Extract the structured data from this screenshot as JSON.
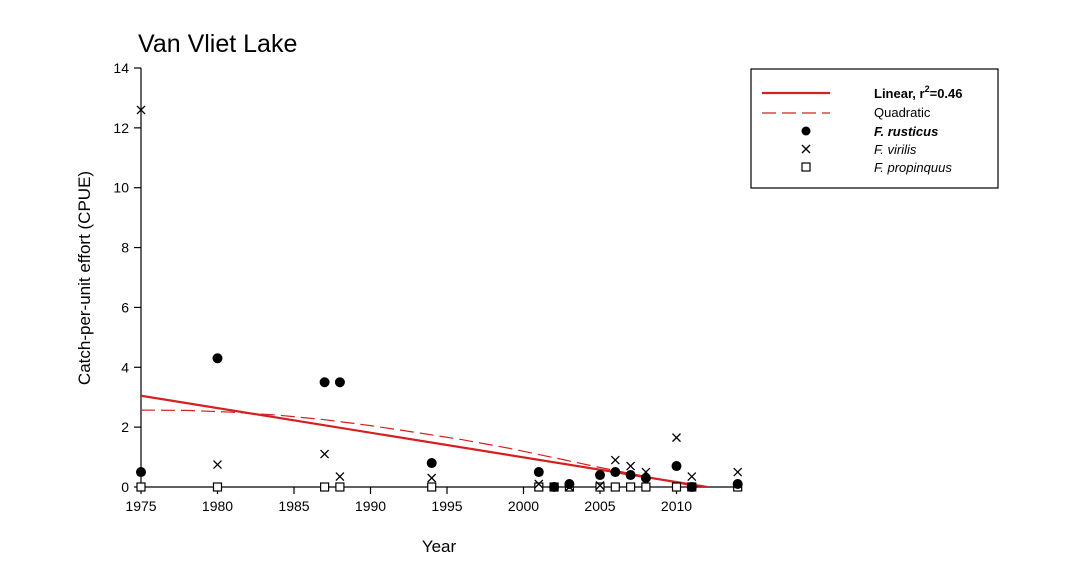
{
  "chart_data": {
    "type": "scatter",
    "title": "Van Vliet Lake",
    "xlabel": "Year",
    "ylabel": "Catch-per-unit effort (CPUE)",
    "xlim": [
      1975,
      2014
    ],
    "ylim": [
      0,
      14
    ],
    "x_ticks": [
      1975,
      1980,
      1985,
      1990,
      1995,
      2000,
      2005,
      2010
    ],
    "y_ticks": [
      0,
      2,
      4,
      6,
      8,
      10,
      12,
      14
    ],
    "grid": false,
    "legend_position": "right",
    "series": [
      {
        "name": "F. rusticus",
        "marker": "filled-circle",
        "color": "#000000",
        "points": [
          [
            1975,
            0.5
          ],
          [
            1980,
            4.3
          ],
          [
            1987,
            3.5
          ],
          [
            1988,
            3.5
          ],
          [
            1994,
            0.8
          ],
          [
            2001,
            0.5
          ],
          [
            2002,
            0.0
          ],
          [
            2003,
            0.1
          ],
          [
            2005,
            0.4
          ],
          [
            2006,
            0.5
          ],
          [
            2007,
            0.4
          ],
          [
            2008,
            0.3
          ],
          [
            2010,
            0.7
          ],
          [
            2011,
            0.0
          ],
          [
            2014,
            0.1
          ]
        ]
      },
      {
        "name": "F. virilis",
        "marker": "x",
        "color": "#000000",
        "points": [
          [
            1975,
            12.6
          ],
          [
            1980,
            0.75
          ],
          [
            1987,
            1.1
          ],
          [
            1988,
            0.35
          ],
          [
            1994,
            0.3
          ],
          [
            2001,
            0.1
          ],
          [
            2002,
            0.0
          ],
          [
            2003,
            0.0
          ],
          [
            2005,
            0.05
          ],
          [
            2006,
            0.9
          ],
          [
            2007,
            0.7
          ],
          [
            2008,
            0.5
          ],
          [
            2010,
            1.65
          ],
          [
            2011,
            0.35
          ],
          [
            2014,
            0.5
          ]
        ]
      },
      {
        "name": "F. propinquus",
        "marker": "open-square",
        "color": "#000000",
        "points": [
          [
            1975,
            0
          ],
          [
            1980,
            0
          ],
          [
            1987,
            0
          ],
          [
            1988,
            0
          ],
          [
            1994,
            0
          ],
          [
            2001,
            0
          ],
          [
            2002,
            0
          ],
          [
            2003,
            0
          ],
          [
            2005,
            0
          ],
          [
            2006,
            0
          ],
          [
            2007,
            0
          ],
          [
            2008,
            0
          ],
          [
            2010,
            0
          ],
          [
            2011,
            0
          ],
          [
            2014,
            0
          ]
        ]
      }
    ],
    "fits": [
      {
        "name": "Linear",
        "r2_label": "r",
        "r2_sup": "2",
        "r2_value": "=0.46",
        "style": "solid",
        "color": "#d42020",
        "points": [
          [
            1975,
            3.05
          ],
          [
            2012,
            0.0
          ]
        ]
      },
      {
        "name": "Quadratic",
        "style": "dashed",
        "color": "#d42020",
        "points": [
          [
            1975,
            2.57
          ],
          [
            1978,
            2.56
          ],
          [
            1981,
            2.5
          ],
          [
            1984,
            2.4
          ],
          [
            1987,
            2.25
          ],
          [
            1990,
            2.05
          ],
          [
            1993,
            1.82
          ],
          [
            1996,
            1.58
          ],
          [
            1999,
            1.3
          ],
          [
            2002,
            0.98
          ],
          [
            2005,
            0.65
          ],
          [
            2008,
            0.35
          ],
          [
            2010,
            0.15
          ],
          [
            2011,
            0.03
          ]
        ]
      }
    ]
  },
  "legend": {
    "linear_label": "Linear, ",
    "linear_r": "r",
    "linear_sup": "2",
    "linear_value": "=0.46",
    "quadratic_label": "Quadratic",
    "rusticus_label": "F. rusticus",
    "virilis_label": "F. virilis",
    "propinquus_label": "F. propinquus"
  }
}
